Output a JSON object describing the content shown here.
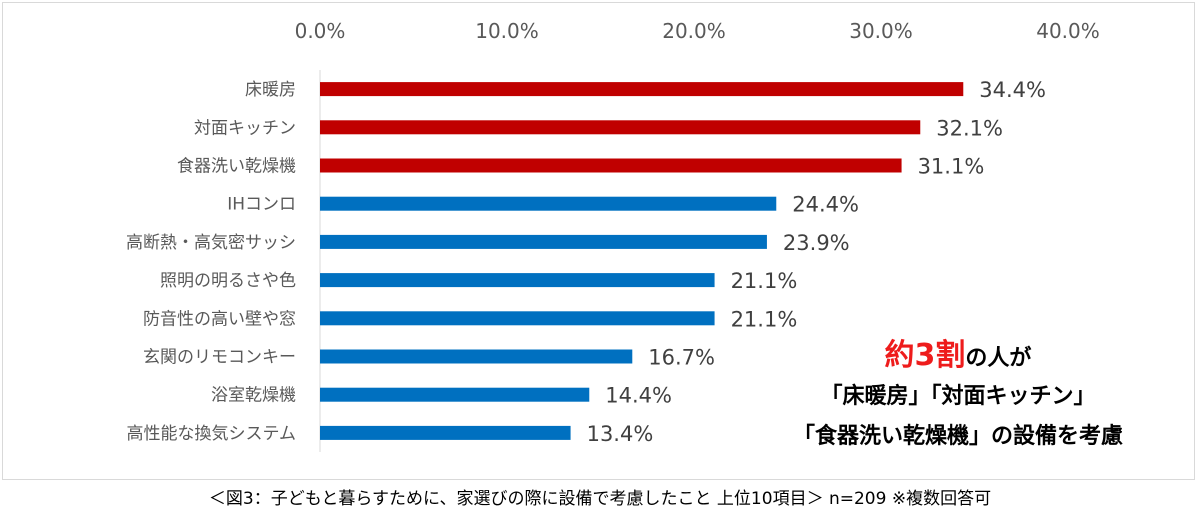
{
  "chart_data": {
    "type": "bar",
    "orientation": "horizontal",
    "categories": [
      "床暖房",
      "対面キッチン",
      "食器洗い乾燥機",
      "IHコンロ",
      "高断熱・高気密サッシ",
      "照明の明るさや色",
      "防音性の高い壁や窓",
      "玄関のリモコンキー",
      "浴室乾燥機",
      "高性能な換気システム"
    ],
    "values": [
      34.4,
      32.1,
      31.1,
      24.4,
      23.9,
      21.1,
      21.1,
      16.7,
      14.4,
      13.4
    ],
    "data_labels": [
      "34.4%",
      "32.1%",
      "31.1%",
      "24.4%",
      "23.9%",
      "21.1%",
      "21.1%",
      "16.7%",
      "14.4%",
      "13.4%"
    ],
    "highlight": [
      true,
      true,
      true,
      false,
      false,
      false,
      false,
      false,
      false,
      false
    ],
    "x_ticks": [
      "0.0%",
      "10.0%",
      "20.0%",
      "30.0%",
      "40.0%"
    ],
    "xlim": [
      0,
      40
    ],
    "xaxis_position": "top",
    "grid": false,
    "title": "",
    "xlabel": "",
    "ylabel": ""
  },
  "colors": {
    "highlight_bar": "#c00000",
    "normal_bar": "#0070c0",
    "emphasis_text": "#ee1c1c"
  },
  "callout": {
    "emphasis": "約3割",
    "line1_rest": "の人が",
    "line2": "「床暖房」「対面キッチン」",
    "line3": "「食器洗い乾燥機」の設備を考慮"
  },
  "caption": "＜図3：子どもと暮らすために、家選びの際に設備で考慮したこと 上位10項目＞ n=209 ※複数回答可"
}
